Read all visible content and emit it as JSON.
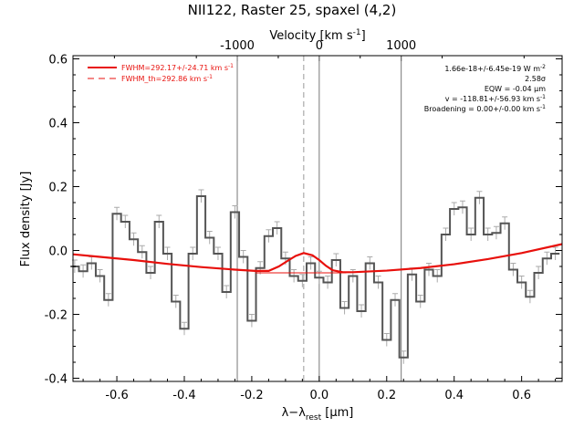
{
  "chart_data": {
    "type": "line",
    "title": "NII122, Raster 25, spaxel (4,2)",
    "xlabel": "λ−λ",
    "xlabel_sub": "rest",
    "xlabel_unit": " [μm]",
    "ylabel": "Flux density [Jy]",
    "top_axis_label": "Velocity [km s",
    "top_axis_label_sup": "-1",
    "top_axis_label_end": "]",
    "xlim": [
      -0.73,
      0.72
    ],
    "ylim": [
      -0.41,
      0.61
    ],
    "xticks": [
      "-0.6",
      "-0.4",
      "-0.2",
      "0.0",
      "0.2",
      "0.4",
      "0.6"
    ],
    "xtick_values": [
      -0.6,
      -0.4,
      -0.2,
      0.0,
      0.2,
      0.4,
      0.6
    ],
    "yticks": [
      "-0.4",
      "-0.2",
      "0.0",
      "0.2",
      "0.4",
      "0.6"
    ],
    "ytick_values": [
      -0.4,
      -0.2,
      0.0,
      0.2,
      0.4,
      0.6
    ],
    "top_ticks": [
      "-1000",
      "0",
      "1000"
    ],
    "top_tick_wavelengths": [
      -0.2429,
      0.0,
      0.2429
    ],
    "legend_placement": "top-left",
    "legend": [
      {
        "label": "FWHM=292.17+/-24.71 km s",
        "sup": "-1",
        "style": "solid",
        "color": "#e8100c"
      },
      {
        "label": "FWHM_th=292.86 km s",
        "sup": "-1",
        "style": "dashed",
        "color": "#e8100c"
      }
    ],
    "annotations": [
      {
        "text": "1.66e-18+/-6.45e-19 W m",
        "sup": "-2"
      },
      {
        "text": "2.58σ",
        "sup": ""
      },
      {
        "text": "EQW = -0.04 μm",
        "sup": ""
      },
      {
        "text": "v = -118.81+/-56.93 km s",
        "sup": "-1"
      },
      {
        "text": "Broadening = 0.00+/-0.00 km s",
        "sup": "-1"
      }
    ],
    "vlines_solid": [
      -0.243,
      0.0,
      0.243
    ],
    "vline_dashed": -0.046,
    "series": [
      {
        "style": "histogram",
        "color": "#555555",
        "x": [
          -0.725,
          -0.7,
          -0.675,
          -0.65,
          -0.625,
          -0.6,
          -0.575,
          -0.55,
          -0.525,
          -0.5,
          -0.475,
          -0.45,
          -0.425,
          -0.4,
          -0.375,
          -0.35,
          -0.325,
          -0.3,
          -0.275,
          -0.25,
          -0.225,
          -0.2,
          -0.175,
          -0.15,
          -0.125,
          -0.1,
          -0.075,
          -0.05,
          -0.025,
          0.0,
          0.025,
          0.05,
          0.075,
          0.1,
          0.125,
          0.15,
          0.175,
          0.2,
          0.225,
          0.25,
          0.275,
          0.3,
          0.325,
          0.35,
          0.375,
          0.4,
          0.425,
          0.45,
          0.475,
          0.5,
          0.525,
          0.55,
          0.575,
          0.6,
          0.625,
          0.65,
          0.675,
          0.7
        ],
        "y": [
          -0.05,
          -0.065,
          -0.04,
          -0.08,
          -0.155,
          0.115,
          0.09,
          0.035,
          -0.005,
          -0.07,
          0.09,
          -0.01,
          -0.16,
          -0.245,
          -0.01,
          0.17,
          0.04,
          -0.01,
          -0.13,
          0.12,
          -0.02,
          -0.22,
          -0.055,
          0.045,
          0.07,
          -0.025,
          -0.08,
          -0.095,
          -0.04,
          -0.085,
          -0.1,
          -0.03,
          -0.18,
          -0.08,
          -0.19,
          -0.04,
          -0.1,
          -0.28,
          -0.155,
          -0.335,
          -0.075,
          -0.16,
          -0.06,
          -0.08,
          0.05,
          0.13,
          0.135,
          0.05,
          0.165,
          0.05,
          0.055,
          0.085,
          -0.06,
          -0.1,
          -0.145,
          -0.07,
          -0.025,
          -0.01
        ]
      },
      {
        "name": "FWHM=292.17+/-24.71 km s-1",
        "style": "solid",
        "color": "#e8100c",
        "x": [
          -0.73,
          -0.65,
          -0.55,
          -0.45,
          -0.35,
          -0.25,
          -0.19,
          -0.15,
          -0.12,
          -0.09,
          -0.07,
          -0.046,
          -0.02,
          0.0,
          0.02,
          0.04,
          0.07,
          0.1,
          0.2,
          0.3,
          0.4,
          0.5,
          0.6,
          0.72
        ],
        "y": [
          -0.012,
          -0.02,
          -0.03,
          -0.042,
          -0.052,
          -0.06,
          -0.064,
          -0.064,
          -0.05,
          -0.03,
          -0.017,
          -0.008,
          -0.015,
          -0.03,
          -0.048,
          -0.062,
          -0.068,
          -0.068,
          -0.063,
          -0.055,
          -0.043,
          -0.027,
          -0.008,
          0.02
        ]
      }
    ],
    "baseline_segment": {
      "x": [
        -0.19,
        0.08
      ],
      "y": [
        -0.07,
        -0.07
      ]
    }
  }
}
